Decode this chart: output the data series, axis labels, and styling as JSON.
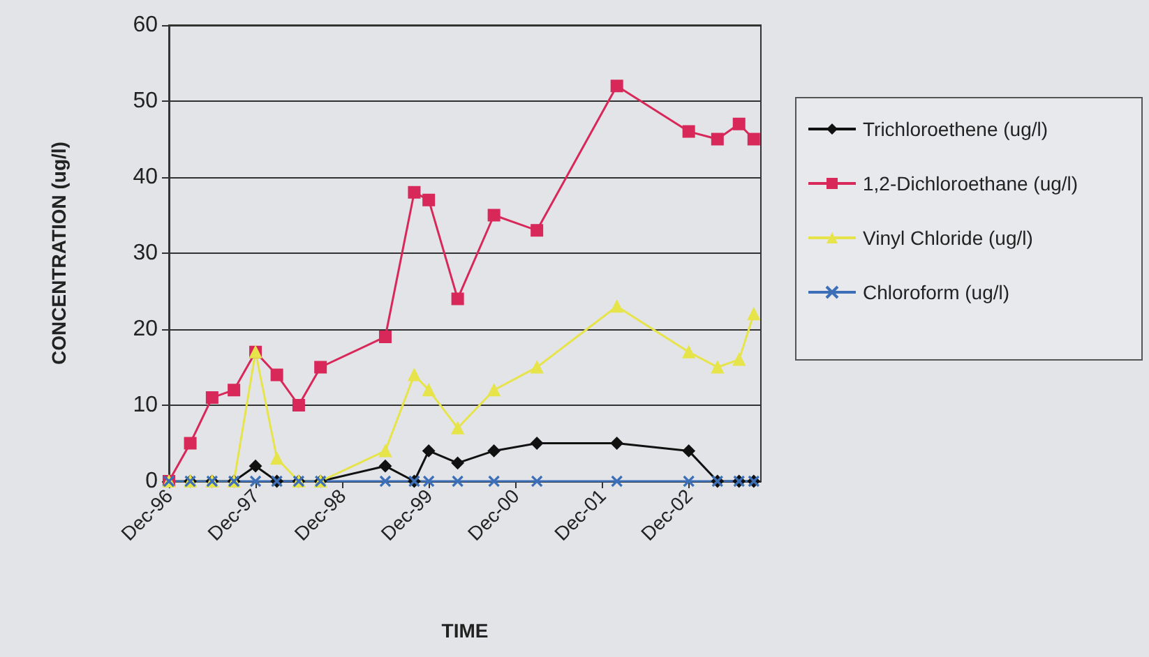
{
  "chart_data": {
    "type": "line",
    "xlabel": "TIME",
    "ylabel": "CONCENTRATION (ug/l)",
    "x": [
      "1996-12",
      "1997-03",
      "1997-06",
      "1997-09",
      "1997-12",
      "1998-03",
      "1998-06",
      "1998-09",
      "1999-06",
      "1999-10",
      "1999-12",
      "2000-04",
      "2000-09",
      "2001-03",
      "2002-02",
      "2002-12",
      "2003-04",
      "2003-07",
      "2003-09"
    ],
    "series": [
      {
        "name": "Trichloroethene (ug/l)",
        "color": "#111111",
        "marker": "diamond",
        "values": [
          0,
          0,
          0,
          0,
          2,
          0,
          0,
          0,
          2,
          0,
          4,
          2.4,
          4,
          5,
          5,
          4,
          0,
          0,
          0
        ]
      },
      {
        "name": "1,2-Dichloroethane (ug/l)",
        "color": "#d8285a",
        "marker": "square",
        "values": [
          0,
          5,
          11,
          12,
          17,
          14,
          10,
          15,
          19,
          38,
          37,
          24,
          35,
          33,
          52,
          46,
          45,
          47,
          45
        ]
      },
      {
        "name": "Vinyl Chloride (ug/l)",
        "color": "#e6e44a",
        "marker": "triangle",
        "values": [
          0,
          0,
          0,
          0,
          17,
          3,
          0,
          0,
          4,
          14,
          12,
          7,
          12,
          15,
          23,
          17,
          15,
          16,
          22
        ]
      },
      {
        "name": "Chloroform (ug/l)",
        "color": "#3c6fb8",
        "marker": "cross",
        "values": [
          0,
          0,
          0,
          0,
          0,
          0,
          0,
          0,
          0,
          0,
          0,
          0,
          0,
          0,
          0,
          0,
          0,
          0,
          0
        ]
      }
    ],
    "xlim": [
      "1996-12",
      "2003-10"
    ],
    "xticks": [
      {
        "value": "1996-12",
        "label": "Dec-96"
      },
      {
        "value": "1997-12",
        "label": "Dec-97"
      },
      {
        "value": "1998-12",
        "label": "Dec-98"
      },
      {
        "value": "1999-12",
        "label": "Dec-99"
      },
      {
        "value": "2000-12",
        "label": "Dec-00"
      },
      {
        "value": "2001-12",
        "label": "Dec-01"
      },
      {
        "value": "2002-12",
        "label": "Dec-02"
      }
    ],
    "ylim": [
      0,
      60
    ],
    "yticks": [
      0,
      10,
      20,
      30,
      40,
      50,
      60
    ],
    "grid": "y",
    "legend": "right",
    "line_style": "solid"
  }
}
